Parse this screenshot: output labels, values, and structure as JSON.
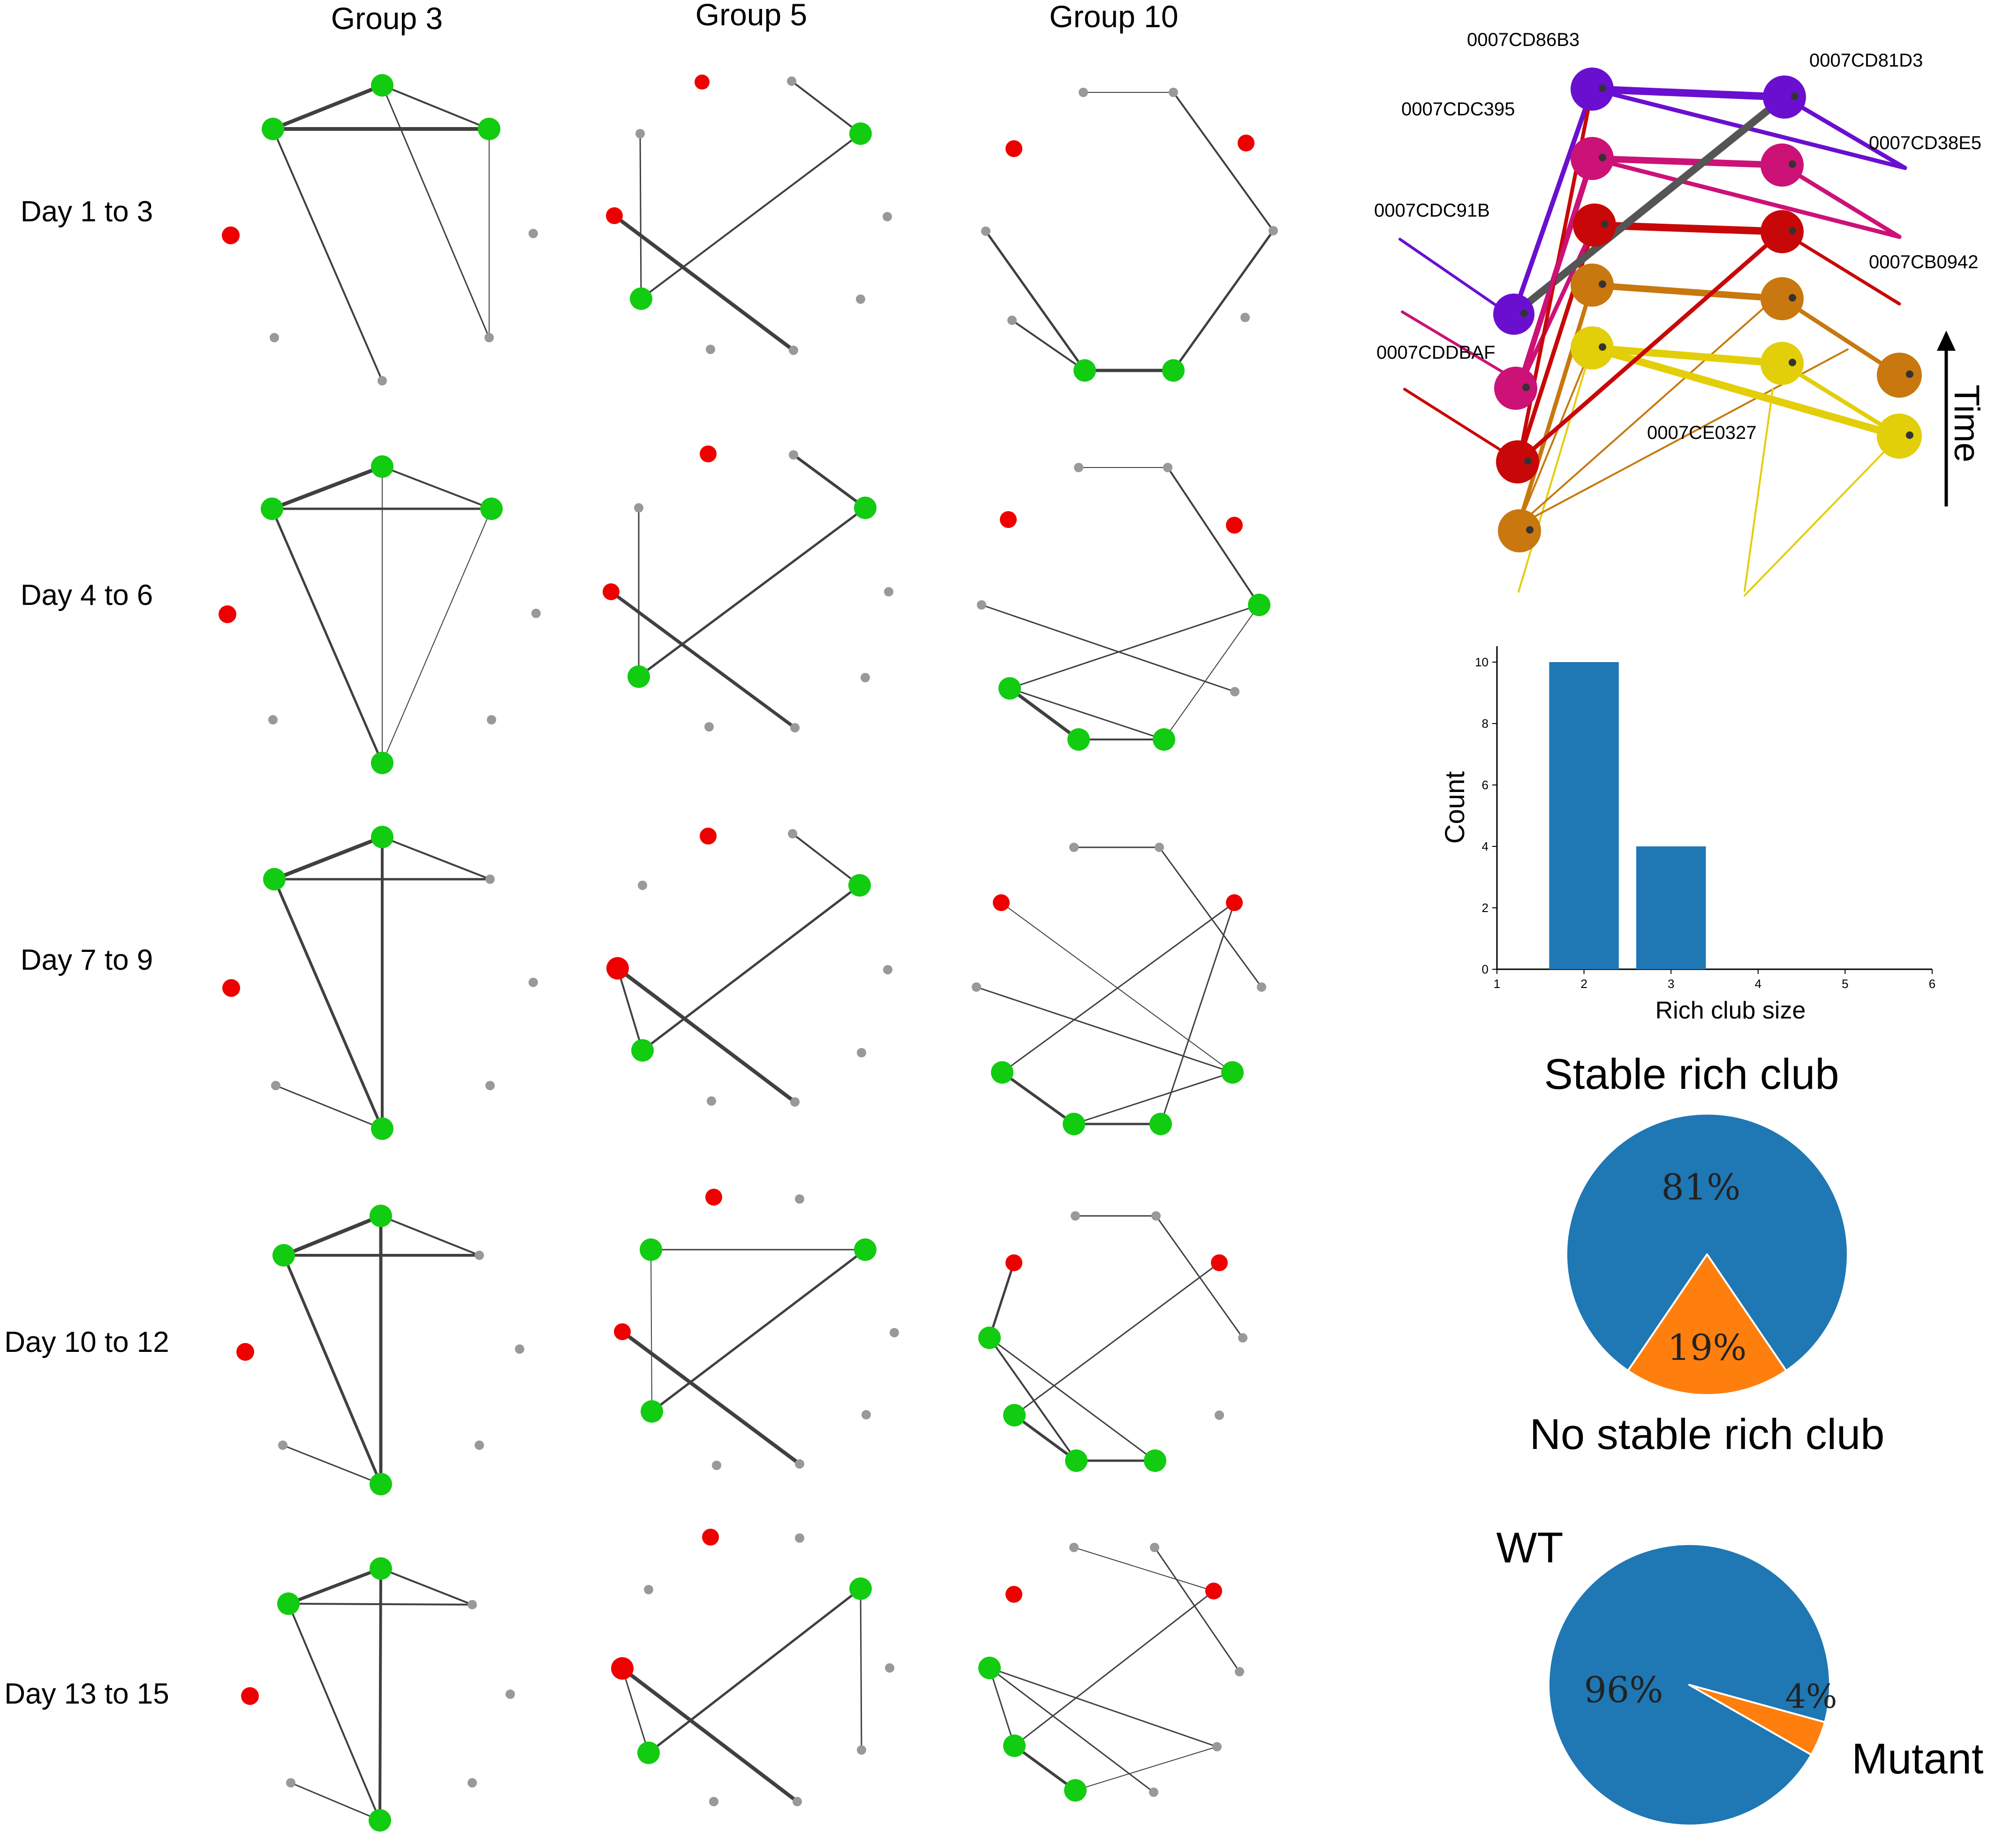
{
  "networks": {
    "groups": [
      "Group 3",
      "Group 5",
      "Group 10"
    ],
    "periods": [
      "Day 1 to 3",
      "Day 4 to 6",
      "Day 7 to 9",
      "Day 10 to 12",
      "Day 13 to 15"
    ]
  },
  "timeline": {
    "ids": [
      "0007CD86B3",
      "0007CD81D3",
      "0007CDC395",
      "0007CD38E5",
      "0007CDC91B",
      "0007CB0942",
      "0007CDDBAF",
      "0007CE0327"
    ],
    "axis_label": "Time",
    "colors": {
      "purple": "#6a0fd0",
      "magenta": "#cc1177",
      "red": "#c80808",
      "orange": "#c8780e",
      "yellow": "#e3ce0a",
      "dark": "#555555"
    }
  },
  "chart_data": [
    {
      "type": "bar",
      "x": [
        2,
        3
      ],
      "values": [
        10,
        4
      ],
      "xlabel": "Rich club size",
      "ylabel": "Count",
      "xlim": [
        1,
        6
      ],
      "ylim": [
        0,
        10
      ],
      "xticks": [
        "1",
        "2",
        "3",
        "4",
        "5",
        "6"
      ],
      "yticks": [
        "0",
        "2",
        "4",
        "6",
        "8",
        "10"
      ],
      "color": "#1f77b4"
    },
    {
      "type": "pie",
      "labels": [
        "Stable rich club",
        "No stable rich club"
      ],
      "values": [
        81,
        19
      ],
      "value_labels": [
        "81%",
        "19%"
      ],
      "colors": [
        "#1f77b4",
        "#ff7f0e"
      ]
    },
    {
      "type": "pie",
      "labels": [
        "WT",
        "Mutant"
      ],
      "values": [
        96,
        4
      ],
      "value_labels": [
        "96%",
        "4%"
      ],
      "colors": [
        "#1f77b4",
        "#ff7f0e"
      ]
    }
  ]
}
